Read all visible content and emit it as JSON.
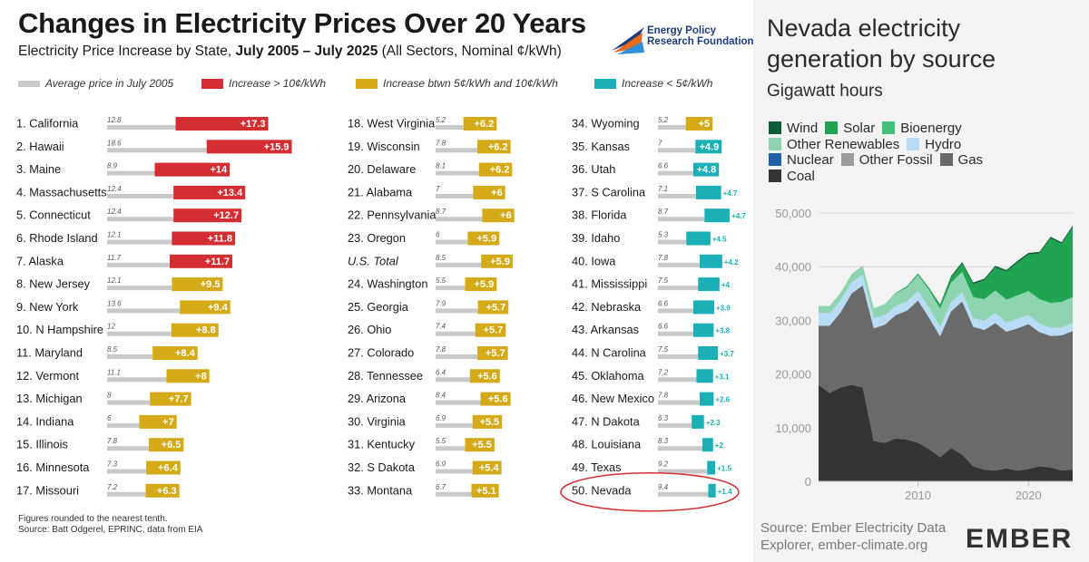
{
  "left_panel": {
    "title": "Changes in Electricity Prices Over 20 Years",
    "subtitle_pre": "Electricity Price Increase by State, ",
    "subtitle_bold": "July 2005 – July 2025",
    "subtitle_post": " (All Sectors, Nominal ¢/kWh)",
    "logo_line1": "Energy Policy",
    "logo_line2": "Research Foundation",
    "legend": [
      "Average price in July 2005",
      "Increase > 10¢/kWh",
      "Increase btwn 5¢/kWh and 10¢/kWh",
      "Increase < 5¢/kWh"
    ],
    "note_line1": "Figures rounded to the nearest tenth.",
    "note_line2": "Source: Batt Odgerel, EPRINC, data from EIA"
  },
  "right_panel": {
    "title": "Nevada electricity generation by source",
    "unit": "Gigawatt hours",
    "source_line1": "Source: Ember Electricity Data",
    "source_line2": "Explorer, ember-climate.org",
    "brand": "EMBER"
  },
  "colors": {
    "gray": "#c9c9c9",
    "red": "#d42e32",
    "gold": "#d4aa19",
    "teal": "#1ab0b6",
    "wind": "#0d5e35",
    "solar": "#1fa552",
    "bioenergy": "#43c17a",
    "other_renewables": "#8fd4b0",
    "hydro": "#b8dcf5",
    "nuclear": "#1f5fa8",
    "other_fossil": "#9c9c9c",
    "gas": "#6a6a6a",
    "coal": "#343434"
  },
  "chart_data": [
    {
      "type": "bar",
      "title": "Changes in Electricity Prices Over 20 Years",
      "subtitle": "Electricity Price Increase by State, July 2005 – July 2025 (All Sectors, Nominal ¢/kWh)",
      "series_names": [
        "Average price in July 2005",
        "Increase"
      ],
      "columns": [
        [
          {
            "label": "1. California",
            "base": "12.8",
            "inc": "+17.3",
            "cat": "red"
          },
          {
            "label": "2. Hawaii",
            "base": "18.6",
            "inc": "+15.9",
            "cat": "red"
          },
          {
            "label": "3. Maine",
            "base": "8.9",
            "inc": "+14",
            "cat": "red"
          },
          {
            "label": "4. Massachusetts",
            "base": "12.4",
            "inc": "+13.4",
            "cat": "red"
          },
          {
            "label": "5. Connecticut",
            "base": "12.4",
            "inc": "+12.7",
            "cat": "red"
          },
          {
            "label": "6. Rhode Island",
            "base": "12.1",
            "inc": "+11.8",
            "cat": "red"
          },
          {
            "label": "7. Alaska",
            "base": "11.7",
            "inc": "+11.7",
            "cat": "red"
          },
          {
            "label": "8. New Jersey",
            "base": "12.1",
            "inc": "+9.5",
            "cat": "gold"
          },
          {
            "label": "9. New York",
            "base": "13.6",
            "inc": "+9.4",
            "cat": "gold"
          },
          {
            "label": "10. N Hampshire",
            "base": "12",
            "inc": "+8.8",
            "cat": "gold"
          },
          {
            "label": "11. Maryland",
            "base": "8.5",
            "inc": "+8.4",
            "cat": "gold"
          },
          {
            "label": "12. Vermont",
            "base": "11.1",
            "inc": "+8",
            "cat": "gold"
          },
          {
            "label": "13. Michigan",
            "base": "8",
            "inc": "+7.7",
            "cat": "gold"
          },
          {
            "label": "14. Indiana",
            "base": "6",
            "inc": "+7",
            "cat": "gold"
          },
          {
            "label": "15. Illinois",
            "base": "7.8",
            "inc": "+6.5",
            "cat": "gold"
          },
          {
            "label": "16. Minnesota",
            "base": "7.3",
            "inc": "+6.4",
            "cat": "gold"
          },
          {
            "label": "17. Missouri",
            "base": "7.2",
            "inc": "+6.3",
            "cat": "gold"
          }
        ],
        [
          {
            "label": "18. West Virginia",
            "base": "5.2",
            "inc": "+6.2",
            "cat": "gold"
          },
          {
            "label": "19. Wisconsin",
            "base": "7.8",
            "inc": "+6.2",
            "cat": "gold"
          },
          {
            "label": "20. Delaware",
            "base": "8.1",
            "inc": "+6.2",
            "cat": "gold"
          },
          {
            "label": "21. Alabama",
            "base": "7",
            "inc": "+6",
            "cat": "gold"
          },
          {
            "label": "22. Pennsylvania",
            "base": "8.7",
            "inc": "+6",
            "cat": "gold"
          },
          {
            "label": "23. Oregon",
            "base": "6",
            "inc": "+5.9",
            "cat": "gold"
          },
          {
            "label": "U.S. Total",
            "base": "8.5",
            "inc": "+5.9",
            "cat": "gold",
            "italic": true
          },
          {
            "label": "24. Washington",
            "base": "5.5",
            "inc": "+5.9",
            "cat": "gold"
          },
          {
            "label": "25. Georgia",
            "base": "7.9",
            "inc": "+5.7",
            "cat": "gold"
          },
          {
            "label": "26. Ohio",
            "base": "7.4",
            "inc": "+5.7",
            "cat": "gold"
          },
          {
            "label": "27. Colorado",
            "base": "7.8",
            "inc": "+5.7",
            "cat": "gold"
          },
          {
            "label": "28. Tennessee",
            "base": "6.4",
            "inc": "+5.6",
            "cat": "gold"
          },
          {
            "label": "29. Arizona",
            "base": "8.4",
            "inc": "+5.6",
            "cat": "gold"
          },
          {
            "label": "30. Virginia",
            "base": "6.9",
            "inc": "+5.5",
            "cat": "gold"
          },
          {
            "label": "31. Kentucky",
            "base": "5.5",
            "inc": "+5.5",
            "cat": "gold"
          },
          {
            "label": "32. S Dakota",
            "base": "6.9",
            "inc": "+5.4",
            "cat": "gold"
          },
          {
            "label": "33. Montana",
            "base": "6.7",
            "inc": "+5.1",
            "cat": "gold"
          }
        ],
        [
          {
            "label": "34. Wyoming",
            "base": "5.2",
            "inc": "+5",
            "cat": "gold"
          },
          {
            "label": "35. Kansas",
            "base": "7",
            "inc": "+4.9",
            "cat": "teal"
          },
          {
            "label": "36. Utah",
            "base": "6.6",
            "inc": "+4.8",
            "cat": "teal"
          },
          {
            "label": "37. S Carolina",
            "base": "7.1",
            "inc": "+4.7",
            "cat": "teal"
          },
          {
            "label": "38. Florida",
            "base": "8.7",
            "inc": "+4.7",
            "cat": "teal"
          },
          {
            "label": "39. Idaho",
            "base": "5.3",
            "inc": "+4.5",
            "cat": "teal"
          },
          {
            "label": "40. Iowa",
            "base": "7.8",
            "inc": "+4.2",
            "cat": "teal"
          },
          {
            "label": "41. Mississippi",
            "base": "7.5",
            "inc": "+4",
            "cat": "teal"
          },
          {
            "label": "42. Nebraska",
            "base": "6.6",
            "inc": "+3.9",
            "cat": "teal"
          },
          {
            "label": "43. Arkansas",
            "base": "6.6",
            "inc": "+3.8",
            "cat": "teal"
          },
          {
            "label": "44. N Carolina",
            "base": "7.5",
            "inc": "+3.7",
            "cat": "teal"
          },
          {
            "label": "45. Oklahoma",
            "base": "7.2",
            "inc": "+3.1",
            "cat": "teal"
          },
          {
            "label": "46. New Mexico",
            "base": "7.8",
            "inc": "+2.6",
            "cat": "teal"
          },
          {
            "label": "47. N Dakota",
            "base": "6.3",
            "inc": "+2.3",
            "cat": "teal"
          },
          {
            "label": "48. Louisiana",
            "base": "8.3",
            "inc": "+2",
            "cat": "teal"
          },
          {
            "label": "49. Texas",
            "base": "9.2",
            "inc": "+1.5",
            "cat": "teal"
          },
          {
            "label": "50. Nevada",
            "base": "9.4",
            "inc": "+1.4",
            "cat": "teal",
            "circled": true
          }
        ]
      ]
    },
    {
      "type": "area",
      "title": "Nevada electricity generation by source",
      "ylabel": "Gigawatt hours",
      "ylim": [
        0,
        50000
      ],
      "yticks": [
        "0",
        "10,000",
        "20,000",
        "30,000",
        "40,000",
        "50,000"
      ],
      "xticks": [
        "2010",
        "2020"
      ],
      "grid": true,
      "legend_position": "top",
      "x": [
        2001,
        2002,
        2003,
        2004,
        2005,
        2006,
        2007,
        2008,
        2009,
        2010,
        2011,
        2012,
        2013,
        2014,
        2015,
        2016,
        2017,
        2018,
        2019,
        2020,
        2021,
        2022,
        2023,
        2024
      ],
      "series": [
        {
          "name": "Coal",
          "values": [
            18000,
            16500,
            17500,
            18000,
            17500,
            7500,
            7200,
            8000,
            7800,
            7200,
            6000,
            4500,
            6200,
            5000,
            2800,
            2200,
            2000,
            2400,
            2000,
            2300,
            2800,
            2600,
            2000,
            2200
          ]
        },
        {
          "name": "Gas",
          "values": [
            11000,
            12500,
            14000,
            17000,
            19000,
            21000,
            22000,
            23000,
            24000,
            26500,
            24500,
            22500,
            25500,
            28500,
            26000,
            26000,
            27500,
            25500,
            26500,
            27000,
            25000,
            24500,
            25200,
            25800
          ]
        },
        {
          "name": "Other Fossil",
          "values": [
            0,
            0,
            0,
            0,
            0,
            0,
            0,
            0,
            0,
            0,
            0,
            0,
            0,
            0,
            0,
            0,
            0,
            0,
            0,
            0,
            0,
            0,
            0,
            0
          ]
        },
        {
          "name": "Nuclear",
          "values": [
            0,
            0,
            0,
            0,
            0,
            0,
            0,
            0,
            0,
            0,
            0,
            0,
            0,
            0,
            0,
            0,
            0,
            0,
            0,
            0,
            0,
            0,
            0,
            0
          ]
        },
        {
          "name": "Hydro",
          "values": [
            2400,
            2300,
            2200,
            2100,
            2000,
            1900,
            1800,
            1700,
            1700,
            1800,
            1900,
            1700,
            1700,
            1700,
            1600,
            1700,
            1900,
            1700,
            1800,
            1700,
            1600,
            1500,
            1500,
            1500
          ]
        },
        {
          "name": "Other Renewables",
          "values": [
            1200,
            1300,
            1400,
            1500,
            1600,
            1800,
            2000,
            2300,
            2600,
            2900,
            3200,
            3400,
            3600,
            3800,
            3900,
            4000,
            4100,
            4200,
            4300,
            4400,
            4500,
            4600,
            4700,
            4800
          ]
        },
        {
          "name": "Bioenergy",
          "values": [
            50,
            50,
            50,
            50,
            50,
            50,
            50,
            50,
            50,
            50,
            60,
            60,
            60,
            60,
            60,
            60,
            60,
            60,
            60,
            60,
            60,
            60,
            60,
            60
          ]
        },
        {
          "name": "Solar",
          "values": [
            0,
            0,
            0,
            0,
            0,
            0,
            0,
            100,
            200,
            300,
            400,
            700,
            900,
            1500,
            2400,
            3500,
            4300,
            5200,
            6100,
            6800,
            8500,
            12000,
            10800,
            13000
          ]
        },
        {
          "name": "Wind",
          "values": [
            0,
            0,
            0,
            0,
            0,
            0,
            0,
            0,
            0,
            0,
            0,
            100,
            300,
            300,
            300,
            300,
            300,
            300,
            300,
            300,
            300,
            300,
            300,
            300
          ]
        }
      ]
    }
  ]
}
